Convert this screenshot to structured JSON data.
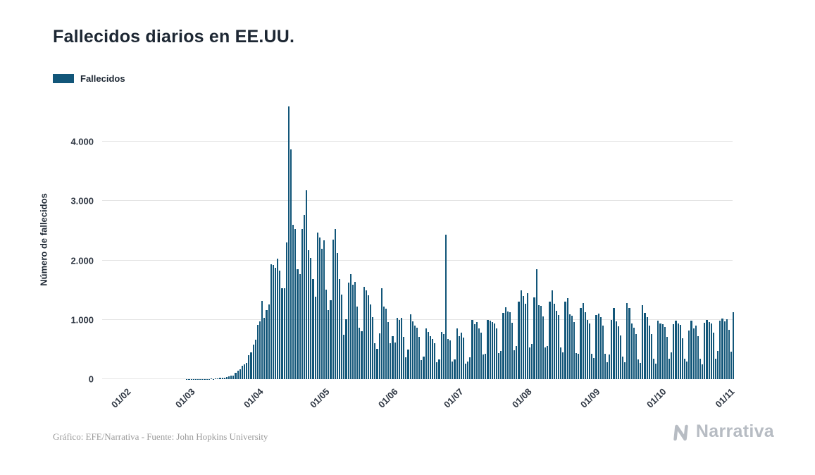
{
  "page": {
    "title": "Fallecidos diarios en EE.UU."
  },
  "legend": {
    "label": "Fallecidos",
    "color": "#125679"
  },
  "footer": {
    "credit": "Gráfico: EFE/Narrativa - Fuente: John Hopkins University",
    "brand": "Narrativa"
  },
  "chart_data": {
    "type": "bar",
    "title": "Fallecidos diarios en EE.UU.",
    "xlabel": "",
    "ylabel": "Número de fallecidos",
    "ylim": [
      0,
      4700
    ],
    "grid": "horizontal",
    "legend_position": "top-left",
    "yticks": [
      {
        "value": 0,
        "label": "0"
      },
      {
        "value": 1000,
        "label": "1.000"
      },
      {
        "value": 2000,
        "label": "2.000"
      },
      {
        "value": 3000,
        "label": "3.000"
      },
      {
        "value": 4000,
        "label": "4.000"
      }
    ],
    "xticks": [
      {
        "index": 10,
        "label": "01/02"
      },
      {
        "index": 39,
        "label": "01/03"
      },
      {
        "index": 70,
        "label": "01/04"
      },
      {
        "index": 100,
        "label": "01/05"
      },
      {
        "index": 131,
        "label": "01/06"
      },
      {
        "index": 161,
        "label": "01/07"
      },
      {
        "index": 192,
        "label": "01/08"
      },
      {
        "index": 223,
        "label": "01/09"
      },
      {
        "index": 253,
        "label": "01/10"
      },
      {
        "index": 284,
        "label": "01/11"
      }
    ],
    "series": [
      {
        "name": "Fallecidos",
        "color": "#125679",
        "values": [
          0,
          0,
          0,
          0,
          0,
          0,
          0,
          0,
          0,
          0,
          0,
          0,
          0,
          0,
          0,
          0,
          0,
          0,
          0,
          0,
          0,
          0,
          0,
          0,
          0,
          0,
          0,
          0,
          0,
          0,
          0,
          0,
          0,
          0,
          0,
          0,
          0,
          0,
          1,
          1,
          2,
          4,
          2,
          3,
          3,
          5,
          4,
          4,
          5,
          7,
          6,
          9,
          12,
          18,
          23,
          26,
          41,
          49,
          57,
          65,
          111,
          141,
          164,
          225,
          247,
          268,
          400,
          453,
          576,
          660,
          909,
          968,
          1320,
          1036,
          1165,
          1255,
          1940,
          1922,
          1873,
          2035,
          1830,
          1528,
          1535,
          2299,
          4591,
          3870,
          2600,
          2530,
          1856,
          1772,
          2524,
          2763,
          3179,
          2172,
          2038,
          1687,
          1384,
          2470,
          2390,
          2201,
          2343,
          1510,
          1164,
          1324,
          2350,
          2528,
          2129,
          1687,
          1422,
          750,
          1008,
          1630,
          1772,
          1595,
          1635,
          1218,
          865,
          805,
          1552,
          1500,
          1418,
          1260,
          1044,
          605,
          505,
          774,
          1535,
          1223,
          1191,
          960,
          605,
          730,
          623,
          1031,
          995,
          1036,
          709,
          373,
          500,
          1093,
          972,
          902,
          867,
          710,
          320,
          383,
          850,
          800,
          722,
          680,
          600,
          285,
          330,
          800,
          763,
          2437,
          680,
          650,
          300,
          330,
          850,
          720,
          780,
          700,
          260,
          300,
          370,
          1000,
          930,
          960,
          850,
          780,
          420,
          430,
          1000,
          980,
          963,
          940,
          860,
          440,
          480,
          1120,
          1205,
          1140,
          1130,
          950,
          490,
          560,
          1300,
          1500,
          1400,
          1270,
          1450,
          540,
          590,
          1380,
          1850,
          1250,
          1240,
          1060,
          540,
          560,
          1310,
          1500,
          1270,
          1150,
          1080,
          540,
          450,
          1300,
          1360,
          1090,
          1070,
          960,
          440,
          430,
          1200,
          1280,
          1130,
          1000,
          940,
          430,
          360,
          1080,
          1100,
          1050,
          900,
          430,
          280,
          420,
          1000,
          1200,
          970,
          890,
          740,
          380,
          290,
          1280,
          1200,
          940,
          870,
          760,
          330,
          270,
          1250,
          1120,
          1050,
          900,
          760,
          340,
          260,
          980,
          940,
          930,
          880,
          710,
          340,
          450,
          930,
          990,
          940,
          920,
          690,
          340,
          300,
          820,
          980,
          860,
          900,
          720,
          340,
          250,
          950,
          1000,
          960,
          940,
          780,
          340,
          480,
          985,
          1025,
          970,
          1010,
          830,
          460,
          1130
        ]
      }
    ]
  }
}
